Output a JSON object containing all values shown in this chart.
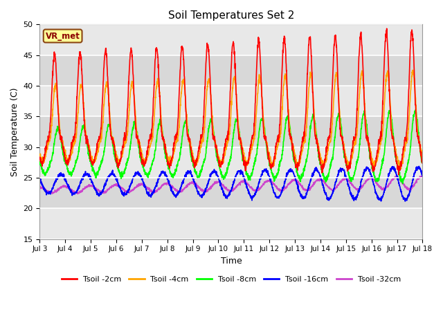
{
  "title": "Soil Temperatures Set 2",
  "xlabel": "Time",
  "ylabel": "Soil Temperature (C)",
  "ylim": [
    15,
    50
  ],
  "xlim": [
    0,
    15
  ],
  "xtick_labels": [
    "Jul 3",
    "Jul 4",
    "Jul 5",
    "Jul 6",
    "Jul 7",
    "Jul 8",
    "Jul 9",
    "Jul 10",
    "Jul 11",
    "Jul 12",
    "Jul 13",
    "Jul 14",
    "Jul 15",
    "Jul 16",
    "Jul 17",
    "Jul 18"
  ],
  "ytick_values": [
    15,
    20,
    25,
    30,
    35,
    40,
    45,
    50
  ],
  "band_colors": [
    "#e8e8e8",
    "#d8d8d8"
  ],
  "grid_color": "#ffffff",
  "fig_color": "#ffffff",
  "annotation_text": "VR_met",
  "annotation_bg": "#ffff99",
  "annotation_border": "#8B4513",
  "series": {
    "Tsoil -2cm": {
      "color": "#ff0000",
      "lw": 1.2
    },
    "Tsoil -4cm": {
      "color": "#ffa500",
      "lw": 1.2
    },
    "Tsoil -8cm": {
      "color": "#00ff00",
      "lw": 1.2
    },
    "Tsoil -16cm": {
      "color": "#0000ff",
      "lw": 1.2
    },
    "Tsoil -32cm": {
      "color": "#cc44cc",
      "lw": 1.2
    }
  }
}
